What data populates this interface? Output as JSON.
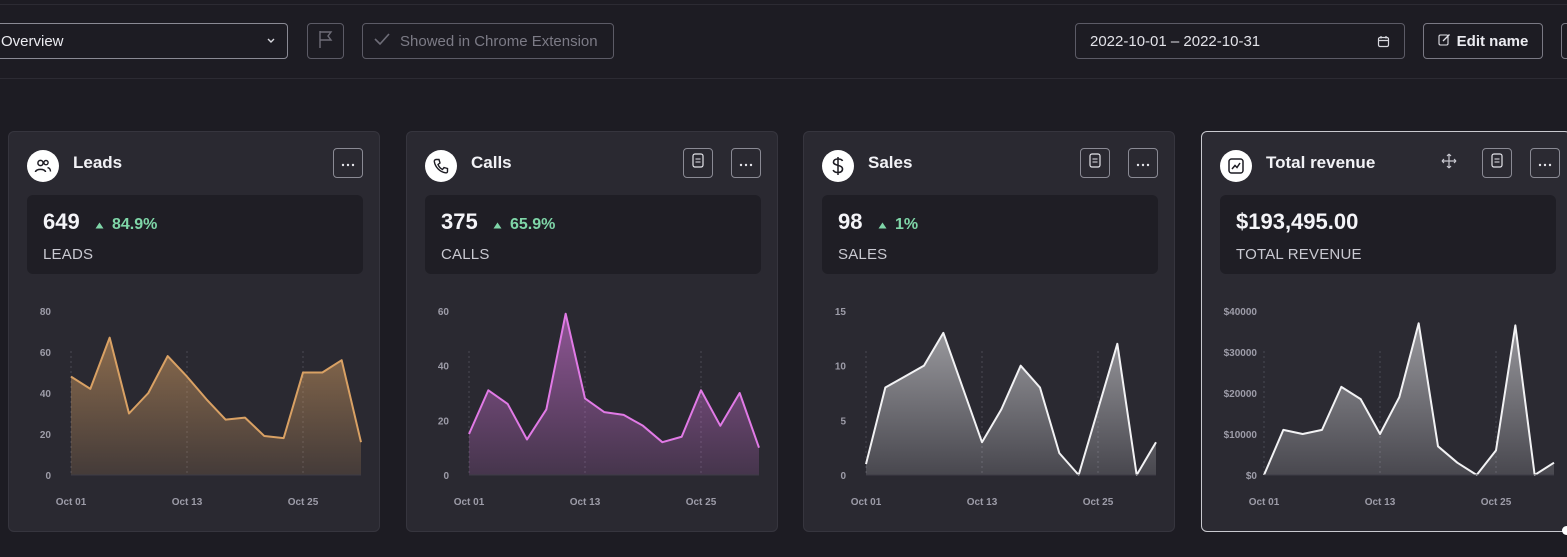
{
  "toolbar": {
    "dashboard_select": "Overview",
    "chrome_label": "Showed in Chrome Extension",
    "date_range": "2022-10-01 – 2022-10-31",
    "edit_label": "Edit name"
  },
  "x_ticks": [
    "Oct 01",
    "Oct 13",
    "Oct 25"
  ],
  "cards": [
    {
      "title": "Leads",
      "icon": "users-icon",
      "value": "649",
      "delta": "84.9%",
      "label": "LEADS",
      "color": "#d9a164",
      "actions": [
        "more"
      ],
      "chart_data": {
        "type": "area",
        "x_labels": [
          "Oct 01",
          "Oct 13",
          "Oct 25"
        ],
        "y_ticks": [
          "0",
          "20",
          "40",
          "60",
          "80"
        ],
        "ylim": [
          0,
          80
        ],
        "values": [
          48,
          42,
          67,
          30,
          40,
          58,
          48,
          37,
          27,
          28,
          19,
          18,
          50,
          50,
          56,
          16
        ]
      }
    },
    {
      "title": "Calls",
      "icon": "phone-icon",
      "value": "375",
      "delta": "65.9%",
      "label": "CALLS",
      "color": "#e17ae6",
      "actions": [
        "notes",
        "more"
      ],
      "chart_data": {
        "type": "area",
        "x_labels": [
          "Oct 01",
          "Oct 13",
          "Oct 25"
        ],
        "y_ticks": [
          "0",
          "20",
          "40",
          "60"
        ],
        "ylim": [
          0,
          60
        ],
        "values": [
          15,
          31,
          26,
          13,
          24,
          59,
          28,
          23,
          22,
          18,
          12,
          14,
          31,
          18,
          30,
          10
        ]
      }
    },
    {
      "title": "Sales",
      "icon": "dollar-icon",
      "value": "98",
      "delta": "1%",
      "label": "SALES",
      "color": "#f2f2f4",
      "actions": [
        "notes",
        "more"
      ],
      "chart_data": {
        "type": "area",
        "x_labels": [
          "Oct 01",
          "Oct 13",
          "Oct 25"
        ],
        "y_ticks": [
          "0",
          "5",
          "10",
          "15"
        ],
        "ylim": [
          0,
          15
        ],
        "values": [
          1,
          8,
          9,
          10,
          13,
          8,
          3,
          6,
          10,
          8,
          2,
          0,
          6,
          12,
          0,
          3
        ]
      }
    },
    {
      "title": "Total revenue",
      "icon": "chart-icon",
      "value": "$193,495.00",
      "delta": "",
      "label": "TOTAL REVENUE",
      "color": "#f2f2f4",
      "actions": [
        "move",
        "notes",
        "more"
      ],
      "chart_data": {
        "type": "area",
        "x_labels": [
          "Oct 01",
          "Oct 13",
          "Oct 25"
        ],
        "y_ticks": [
          "$0",
          "$10000",
          "$20000",
          "$30000",
          "$40000"
        ],
        "ylim": [
          0,
          40000
        ],
        "values": [
          0,
          11000,
          10000,
          11000,
          21500,
          18500,
          10000,
          19000,
          37000,
          7000,
          3000,
          0,
          6000,
          36500,
          0,
          3000
        ]
      }
    }
  ]
}
